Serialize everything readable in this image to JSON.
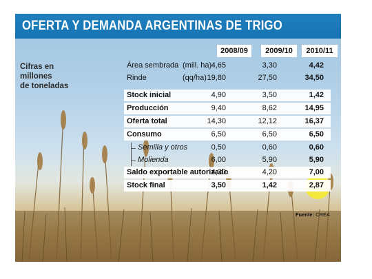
{
  "title": "OFERTA Y DEMANDA ARGENTINAS DE TRIGO",
  "side_label": [
    "Cifras en",
    "millones",
    "de toneladas"
  ],
  "columns": [
    "2008/09",
    "2009/10",
    "2010/11"
  ],
  "rows": [
    {
      "label": "Área sembrada",
      "unit": "(mill. ha)",
      "values": [
        "4,65",
        "3,30",
        "4,42"
      ]
    },
    {
      "label": "Rinde",
      "unit": "(qq/ha)",
      "values": [
        "19,80",
        "27,50",
        "34,50"
      ]
    },
    {
      "label": "Stock inicial",
      "values": [
        "4,90",
        "3,50",
        "1,42"
      ]
    },
    {
      "label": "Producción",
      "values": [
        "9,40",
        "8,62",
        "14,95"
      ]
    },
    {
      "label": "Oferta total",
      "values": [
        "14,30",
        "12,12",
        "16,37"
      ]
    },
    {
      "label": "Consumo",
      "values": [
        "6,50",
        "6,50",
        "6,50"
      ]
    },
    {
      "label": "Semilla y otros",
      "values": [
        "0,50",
        "0,60",
        "0,60"
      ]
    },
    {
      "label": "Molienda",
      "values": [
        "6,00",
        "5,90",
        "5,90"
      ]
    },
    {
      "label": "Saldo exportable autorizado",
      "values": [
        "4,30",
        "4,20",
        "7,00"
      ]
    },
    {
      "label": "Stock final",
      "values": [
        "3,50",
        "1,42",
        "2,87"
      ]
    }
  ],
  "source": {
    "label": "Fuente:",
    "name": "CREA"
  },
  "colors": {
    "title_bar": "#1573b2",
    "highlight": "#f5e83c"
  }
}
